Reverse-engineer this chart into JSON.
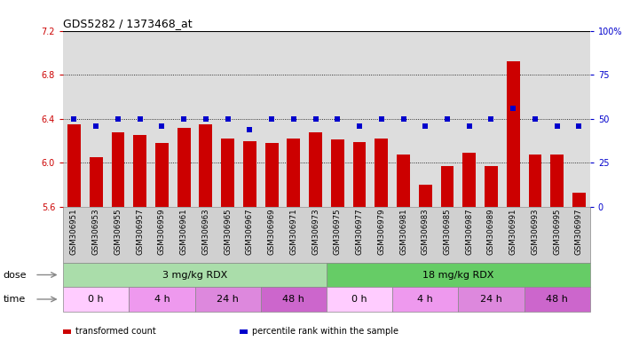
{
  "title": "GDS5282 / 1373468_at",
  "samples": [
    "GSM306951",
    "GSM306953",
    "GSM306955",
    "GSM306957",
    "GSM306959",
    "GSM306961",
    "GSM306963",
    "GSM306965",
    "GSM306967",
    "GSM306969",
    "GSM306971",
    "GSM306973",
    "GSM306975",
    "GSM306977",
    "GSM306979",
    "GSM306981",
    "GSM306983",
    "GSM306985",
    "GSM306987",
    "GSM306989",
    "GSM306991",
    "GSM306993",
    "GSM306995",
    "GSM306997"
  ],
  "bar_values": [
    6.35,
    6.05,
    6.28,
    6.25,
    6.18,
    6.32,
    6.35,
    6.22,
    6.2,
    6.18,
    6.22,
    6.28,
    6.21,
    6.19,
    6.22,
    6.08,
    5.8,
    5.97,
    6.09,
    5.97,
    6.92,
    6.08,
    6.08,
    5.73
  ],
  "dot_percentiles": [
    50,
    46,
    50,
    50,
    46,
    50,
    50,
    50,
    44,
    50,
    50,
    50,
    50,
    46,
    50,
    50,
    46,
    50,
    46,
    50,
    56,
    50,
    46,
    46
  ],
  "ylim": [
    5.6,
    7.2
  ],
  "yticks_left": [
    5.6,
    6.0,
    6.4,
    6.8,
    7.2
  ],
  "right_yticks_pct": [
    0,
    25,
    50,
    75,
    100
  ],
  "bar_color": "#cc0000",
  "dot_color": "#0000cc",
  "background_color": "#ffffff",
  "plot_bg": "#dddddd",
  "dose_groups": [
    {
      "label": "3 mg/kg RDX",
      "start": 0,
      "end": 12,
      "color": "#aaddaa"
    },
    {
      "label": "18 mg/kg RDX",
      "start": 12,
      "end": 24,
      "color": "#66cc66"
    }
  ],
  "time_groups": [
    {
      "label": "0 h",
      "start": 0,
      "end": 3,
      "color": "#ffccff"
    },
    {
      "label": "4 h",
      "start": 3,
      "end": 6,
      "color": "#ee99ee"
    },
    {
      "label": "24 h",
      "start": 6,
      "end": 9,
      "color": "#dd88dd"
    },
    {
      "label": "48 h",
      "start": 9,
      "end": 12,
      "color": "#cc66cc"
    },
    {
      "label": "0 h",
      "start": 12,
      "end": 15,
      "color": "#ffccff"
    },
    {
      "label": "4 h",
      "start": 15,
      "end": 18,
      "color": "#ee99ee"
    },
    {
      "label": "24 h",
      "start": 18,
      "end": 21,
      "color": "#dd88dd"
    },
    {
      "label": "48 h",
      "start": 21,
      "end": 24,
      "color": "#cc66cc"
    }
  ],
  "legend_items": [
    {
      "label": "transformed count",
      "color": "#cc0000"
    },
    {
      "label": "percentile rank within the sample",
      "color": "#0000cc"
    }
  ]
}
